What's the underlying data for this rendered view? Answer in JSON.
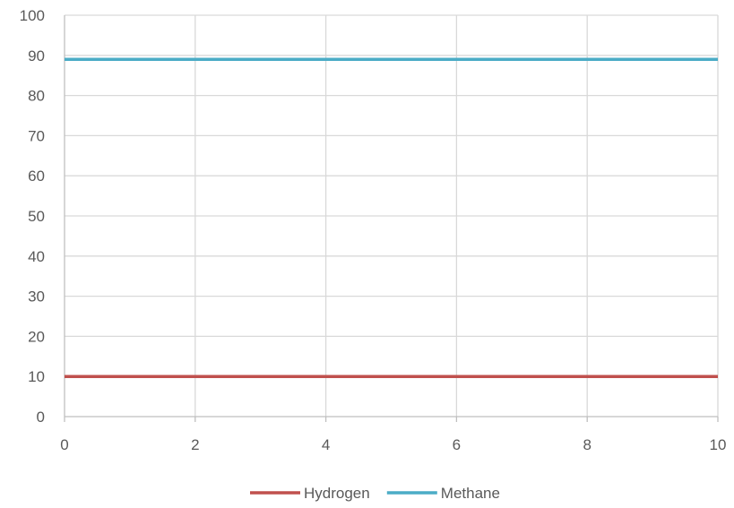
{
  "chart_data": {
    "type": "line",
    "title": "",
    "xlabel": "",
    "ylabel": "",
    "xlim": [
      0,
      10
    ],
    "ylim": [
      0,
      100
    ],
    "x_ticks": [
      "0",
      "2",
      "4",
      "6",
      "8",
      "10"
    ],
    "y_ticks": [
      "0",
      "10",
      "20",
      "30",
      "40",
      "50",
      "60",
      "70",
      "80",
      "90",
      "100"
    ],
    "grid": true,
    "legend_position": "bottom",
    "x": [
      0,
      2,
      4,
      6,
      8,
      10
    ],
    "series": [
      {
        "name": "Hydrogen",
        "color": "#c0504d",
        "values": [
          10,
          10,
          10,
          10,
          10,
          10
        ]
      },
      {
        "name": "Methane",
        "color": "#4bacc6",
        "values": [
          89,
          89,
          89,
          89,
          89,
          89
        ]
      }
    ]
  }
}
